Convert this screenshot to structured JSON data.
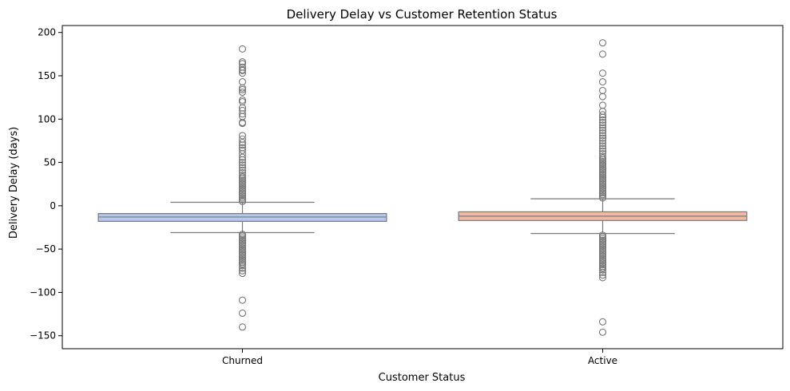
{
  "chart_data": {
    "type": "box",
    "title": "Delivery Delay vs Customer Retention Status",
    "xlabel": "Customer Status",
    "ylabel": "Delivery Delay (days)",
    "ylim": [
      -165,
      208
    ],
    "yticks": [
      200,
      150,
      100,
      50,
      0,
      -50,
      -100,
      -150
    ],
    "ytick_labels": [
      "200",
      "150",
      "100",
      "50",
      "0",
      "−50",
      "−100",
      "−150"
    ],
    "grid": false,
    "categories": [
      "Churned",
      "Active"
    ],
    "boxes": [
      {
        "category": "Churned",
        "color": "#b5c8ee",
        "q1": -18,
        "median": -13,
        "q3": -9,
        "whisker_low": -31,
        "whisker_high": 4,
        "outliers_high": [
          5,
          7,
          9,
          11,
          13,
          15,
          17,
          19,
          21,
          23,
          25,
          27,
          29,
          31,
          33,
          35,
          38,
          41,
          44,
          47,
          50,
          53,
          56,
          60,
          64,
          67,
          70,
          73,
          77,
          81,
          95,
          96,
          103,
          106,
          110,
          113,
          120,
          122,
          131,
          134,
          136,
          143,
          153,
          156,
          157,
          160,
          164,
          166,
          181
        ],
        "outliers_low": [
          -33,
          -35,
          -37,
          -39,
          -41,
          -43,
          -45,
          -47,
          -49,
          -51,
          -53,
          -55,
          -57,
          -59,
          -61,
          -63,
          -65,
          -67,
          -69,
          -72,
          -75,
          -78,
          -109,
          -124,
          -140
        ]
      },
      {
        "category": "Active",
        "color": "#f2b8a2",
        "q1": -17,
        "median": -12,
        "q3": -7,
        "whisker_low": -32,
        "whisker_high": 8,
        "outliers_high": [
          9,
          11,
          13,
          15,
          17,
          19,
          21,
          23,
          25,
          27,
          29,
          31,
          33,
          35,
          37,
          39,
          41,
          43,
          45,
          47,
          49,
          51,
          53,
          55,
          57,
          60,
          63,
          66,
          69,
          72,
          75,
          78,
          81,
          84,
          87,
          90,
          93,
          96,
          99,
          102,
          105,
          109,
          116,
          126,
          133,
          143,
          153,
          175,
          188
        ],
        "outliers_low": [
          -34,
          -36,
          -38,
          -40,
          -42,
          -44,
          -46,
          -48,
          -50,
          -52,
          -54,
          -56,
          -58,
          -60,
          -62,
          -64,
          -66,
          -68,
          -70,
          -72,
          -74,
          -77,
          -80,
          -83,
          -134,
          -146
        ]
      }
    ]
  }
}
